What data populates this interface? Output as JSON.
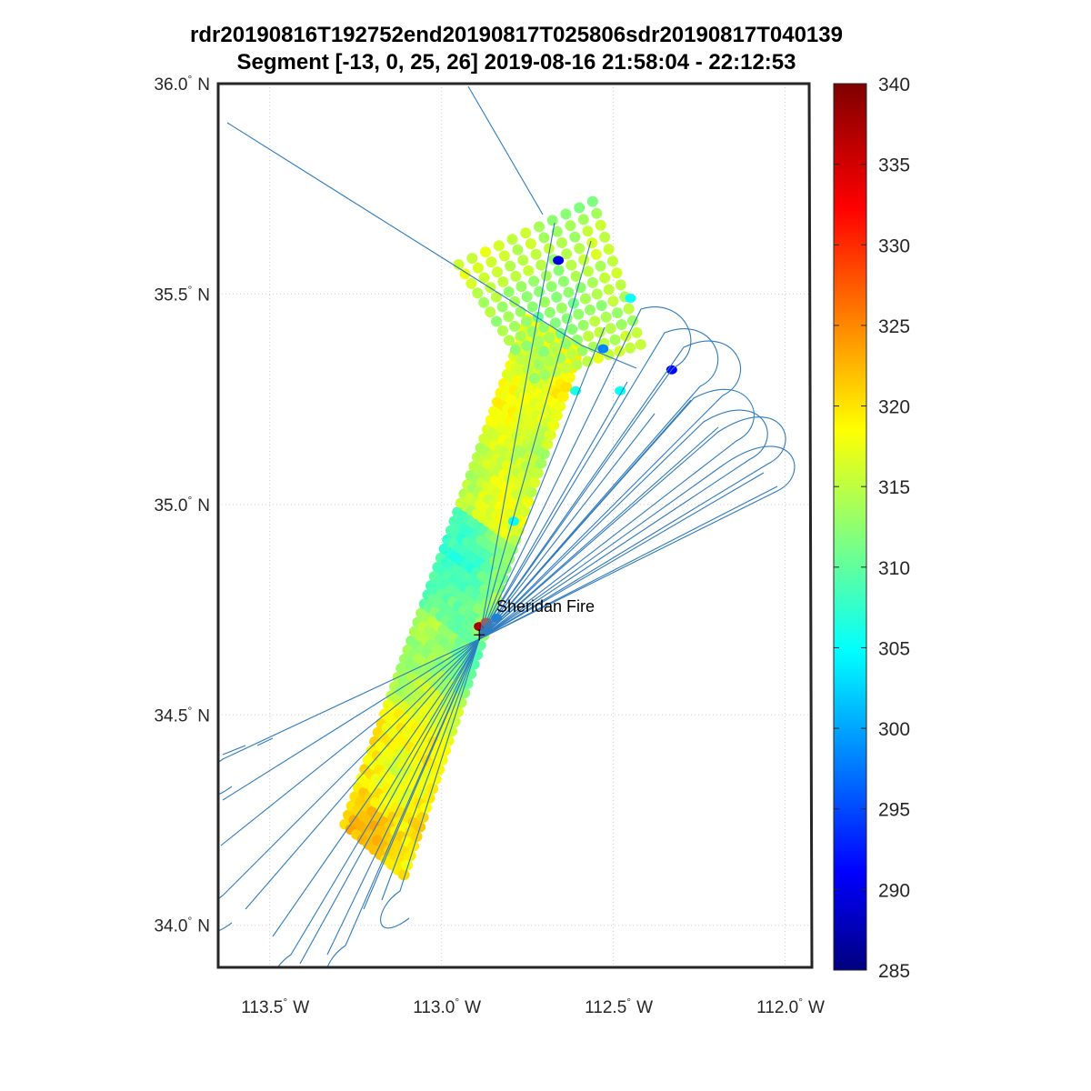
{
  "chart_data": {
    "type": "scatter",
    "title": "rdr20190816T192752end20190817T025806sdr20190817T040139",
    "subtitle": "Segment [-13, 0, 25, 26] 2019-08-16 21:58:04 - 22:12:53",
    "xlabel": "",
    "ylabel": "",
    "xlim": [
      -113.65,
      -111.93
    ],
    "ylim": [
      33.9,
      36.0
    ],
    "grid": true,
    "legend": "none",
    "x_ticks": [
      {
        "value": -113.5,
        "label": "113.5",
        "deg": "°",
        "hemi": "W"
      },
      {
        "value": -113.0,
        "label": "113.0",
        "deg": "°",
        "hemi": "W"
      },
      {
        "value": -112.5,
        "label": "112.5",
        "deg": "°",
        "hemi": "W"
      },
      {
        "value": -112.0,
        "label": "112.0",
        "deg": "°",
        "hemi": "W"
      }
    ],
    "y_ticks": [
      {
        "value": 36.0,
        "label": "36.0",
        "deg": "°",
        "hemi": "N"
      },
      {
        "value": 35.5,
        "label": "35.5",
        "deg": "°",
        "hemi": "N"
      },
      {
        "value": 35.0,
        "label": "35.0",
        "deg": "°",
        "hemi": "N"
      },
      {
        "value": 34.5,
        "label": "34.5",
        "deg": "°",
        "hemi": "N"
      },
      {
        "value": 34.0,
        "label": "34.0",
        "deg": "°",
        "hemi": "N"
      }
    ],
    "colorbar": {
      "min": 285,
      "max": 340,
      "ticks": [
        340,
        335,
        330,
        325,
        320,
        315,
        310,
        305,
        300,
        295,
        290,
        285
      ],
      "colormap": "jet"
    },
    "annotation": {
      "text": "Sheridan Fire",
      "lon": -112.89,
      "lat": 34.69
    },
    "fire_marker": {
      "lon": -112.89,
      "lat": 34.69
    },
    "swath_main": {
      "corners": [
        [
          -113.28,
          34.24
        ],
        [
          -113.11,
          34.12
        ],
        [
          -112.6,
          35.37
        ],
        [
          -112.75,
          35.44
        ]
      ],
      "dominant_temperature_K": [
        306,
        323
      ]
    },
    "swath_north": {
      "corners": [
        [
          -112.95,
          35.57
        ],
        [
          -112.56,
          35.72
        ],
        [
          -112.42,
          35.38
        ],
        [
          -112.73,
          35.3
        ]
      ],
      "dominant_temperature_K": [
        312,
        318
      ]
    },
    "hot_spots": [
      {
        "lon": -112.89,
        "lat": 34.71,
        "value": 338
      },
      {
        "lon": -112.87,
        "lat": 34.72,
        "value": 329
      }
    ],
    "cold_spots": [
      {
        "lon": -112.66,
        "lat": 35.58,
        "value": 290
      },
      {
        "lon": -112.33,
        "lat": 35.32,
        "value": 292
      },
      {
        "lon": -112.53,
        "lat": 35.37,
        "value": 299
      },
      {
        "lon": -112.84,
        "lat": 34.73,
        "value": 300
      },
      {
        "lon": -112.79,
        "lat": 34.96,
        "value": 306
      },
      {
        "lon": -112.61,
        "lat": 35.27,
        "value": 307
      },
      {
        "lon": -112.48,
        "lat": 35.27,
        "value": 306
      },
      {
        "lon": -112.45,
        "lat": 35.49,
        "value": 306
      }
    ],
    "flight_track": {
      "color": "#2f7bbf",
      "hub": {
        "lon": -112.89,
        "lat": 34.68
      }
    }
  }
}
